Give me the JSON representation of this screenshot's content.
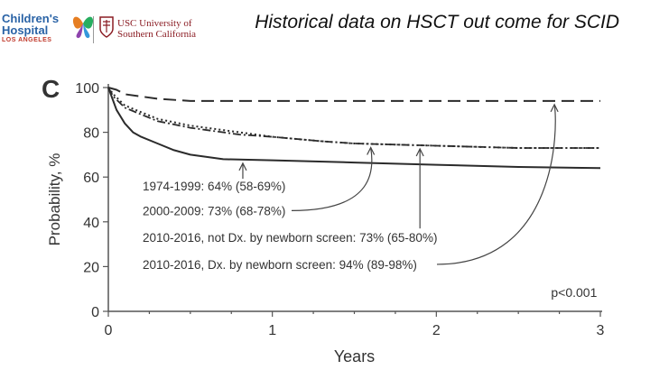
{
  "logos": {
    "chla_line1": "Children's",
    "chla_line2": "Hospital",
    "chla_line3": "LOS ANGELES",
    "usc_line1": "USC University of",
    "usc_line2": "Southern California"
  },
  "slide": {
    "title": "Historical data on HSCT out come for SCID"
  },
  "chart_data": {
    "type": "line",
    "panel_label": "C",
    "title": "",
    "xlabel": "Years",
    "ylabel": "Probability, %",
    "xlim": [
      0,
      3
    ],
    "ylim": [
      0,
      100
    ],
    "x_ticks": [
      "0",
      "1",
      "2",
      "3"
    ],
    "y_ticks": [
      "0",
      "20",
      "40",
      "60",
      "80",
      "100"
    ],
    "grid": false,
    "annotation": "p<0.001",
    "series": [
      {
        "name": "1974-1999: 64% (58-69%)",
        "style": "solid",
        "x": [
          0,
          0.02,
          0.05,
          0.1,
          0.15,
          0.2,
          0.3,
          0.4,
          0.5,
          0.7,
          1.0,
          1.5,
          2.0,
          2.5,
          3.0
        ],
        "y": [
          100,
          96,
          90,
          84,
          80,
          78,
          75,
          72,
          70,
          68,
          67.5,
          66.5,
          65.5,
          64.5,
          64
        ]
      },
      {
        "name": "2000-2009: 73% (68-78%)",
        "style": "dash-dot",
        "x": [
          0,
          0.03,
          0.1,
          0.2,
          0.3,
          0.5,
          0.8,
          1.0,
          1.3,
          1.5,
          2.0,
          2.5,
          3.0
        ],
        "y": [
          100,
          96,
          91,
          88,
          85,
          82,
          79,
          78,
          76,
          75,
          74,
          73,
          73
        ]
      },
      {
        "name": "2010-2016, not Dx. by newborn screen: 73% (65-80%)",
        "style": "dotted",
        "x": [
          0,
          0.03,
          0.1,
          0.2,
          0.3,
          0.5,
          0.8,
          1.0,
          1.3,
          1.5,
          2.0,
          2.5,
          3.0
        ],
        "y": [
          100,
          97,
          92,
          89,
          86,
          83,
          80,
          78,
          76,
          75,
          74,
          73,
          73
        ]
      },
      {
        "name": "2010-2016, Dx. by newborn screen: 94% (89-98%)",
        "style": "dashed",
        "x": [
          0,
          0.05,
          0.1,
          0.2,
          0.3,
          0.5,
          1.0,
          2.0,
          3.0
        ],
        "y": [
          100,
          99,
          97,
          96,
          95,
          94,
          94,
          94,
          94
        ]
      }
    ],
    "labels": [
      {
        "series": 0,
        "text": "1974-1999: 64% (58-69%)",
        "at_y": 56,
        "target_x": 0.82
      },
      {
        "series": 1,
        "text": "2000-2009: 73% (68-78%)",
        "at_y": 45,
        "target_x": 1.6
      },
      {
        "series": 2,
        "text": "2010-2016, not Dx. by newborn screen: 73% (65-80%)",
        "at_y": 33,
        "target_x": 1.9
      },
      {
        "series": 3,
        "text": "2010-2016, Dx. by newborn screen: 94% (89-98%)",
        "at_y": 21,
        "target_x": 2.72
      }
    ]
  }
}
